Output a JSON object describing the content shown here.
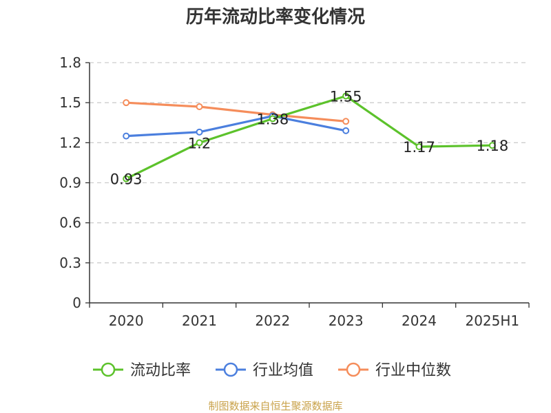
{
  "title": "历年流动比率变化情况",
  "source_note": "制图数据来自恒生聚源数据库",
  "colors": {
    "axis": "#333333",
    "grid": "#cccccc",
    "tick_text": "#333333",
    "label_text": "#222222"
  },
  "chart_data": {
    "type": "line",
    "title": "历年流动比率变化情况",
    "categories": [
      "2020",
      "2021",
      "2022",
      "2023",
      "2024",
      "2025H1"
    ],
    "y_ticks": [
      "0",
      "0.3",
      "0.6",
      "0.9",
      "1.2",
      "1.5",
      "1.8"
    ],
    "ylim": [
      0,
      1.8
    ],
    "grid": true,
    "legend_position": "bottom",
    "series": [
      {
        "name": "流动比率",
        "color": "#5cc22b",
        "values": [
          0.93,
          1.2,
          1.38,
          1.55,
          1.17,
          1.18
        ],
        "labels": [
          "0.93",
          "1.2",
          "1.38",
          "1.55",
          "1.17",
          "1.18"
        ],
        "show_labels": true
      },
      {
        "name": "行业均值",
        "color": "#4b7fde",
        "values": [
          1.25,
          1.28,
          1.4,
          1.29,
          null,
          null
        ],
        "show_labels": false
      },
      {
        "name": "行业中位数",
        "color": "#f58d5b",
        "values": [
          1.5,
          1.47,
          1.41,
          1.36,
          null,
          null
        ],
        "show_labels": false
      }
    ]
  }
}
